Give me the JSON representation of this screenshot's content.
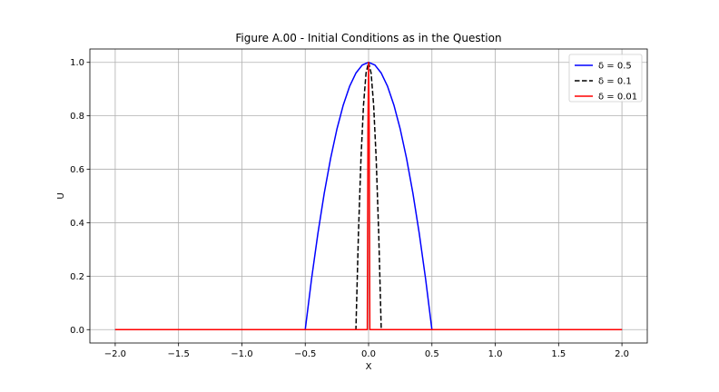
{
  "chart_data": {
    "type": "line",
    "title": "Figure A.00 - Initial Conditions as in the Question",
    "xlabel": "X",
    "ylabel": "U",
    "xlim": [
      -2.2,
      2.2
    ],
    "ylim": [
      -0.05,
      1.05
    ],
    "xticks": [
      -2.0,
      -1.5,
      -1.0,
      -0.5,
      0.0,
      0.5,
      1.0,
      1.5,
      2.0
    ],
    "xtick_labels": [
      "−2.0",
      "−1.5",
      "−1.0",
      "−0.5",
      "0.0",
      "0.5",
      "1.0",
      "1.5",
      "2.0"
    ],
    "yticks": [
      0.0,
      0.2,
      0.4,
      0.6,
      0.8,
      1.0
    ],
    "ytick_labels": [
      "0.0",
      "0.2",
      "0.4",
      "0.6",
      "0.8",
      "1.0"
    ],
    "grid": true,
    "legend_position": "top-right",
    "series": [
      {
        "name": "δ = 0.5",
        "color": "#0000ff",
        "style": "solid",
        "x": [
          -2.0,
          -0.5,
          -0.45,
          -0.4,
          -0.35,
          -0.3,
          -0.25,
          -0.2,
          -0.15,
          -0.1,
          -0.05,
          0.0,
          0.05,
          0.1,
          0.15,
          0.2,
          0.25,
          0.3,
          0.35,
          0.4,
          0.45,
          0.5,
          2.0
        ],
        "y": [
          0.0,
          0.0,
          0.19,
          0.36,
          0.51,
          0.64,
          0.75,
          0.84,
          0.91,
          0.96,
          0.99,
          1.0,
          0.99,
          0.96,
          0.91,
          0.84,
          0.75,
          0.64,
          0.51,
          0.36,
          0.19,
          0.0,
          0.0
        ]
      },
      {
        "name": "δ = 0.1",
        "color": "#000000",
        "style": "dashed",
        "x": [
          -2.0,
          -0.1,
          -0.08,
          -0.06,
          -0.04,
          -0.02,
          0.0,
          0.02,
          0.04,
          0.06,
          0.08,
          0.1,
          2.0
        ],
        "y": [
          0.0,
          0.0,
          0.36,
          0.64,
          0.84,
          0.96,
          1.0,
          0.96,
          0.84,
          0.64,
          0.36,
          0.0,
          0.0
        ]
      },
      {
        "name": "δ = 0.01",
        "color": "#ff0000",
        "style": "solid",
        "x": [
          -2.0,
          -0.01,
          -0.005,
          0.0,
          0.005,
          0.01,
          2.0
        ],
        "y": [
          0.0,
          0.0,
          0.75,
          1.0,
          0.75,
          0.0,
          0.0
        ]
      }
    ]
  }
}
